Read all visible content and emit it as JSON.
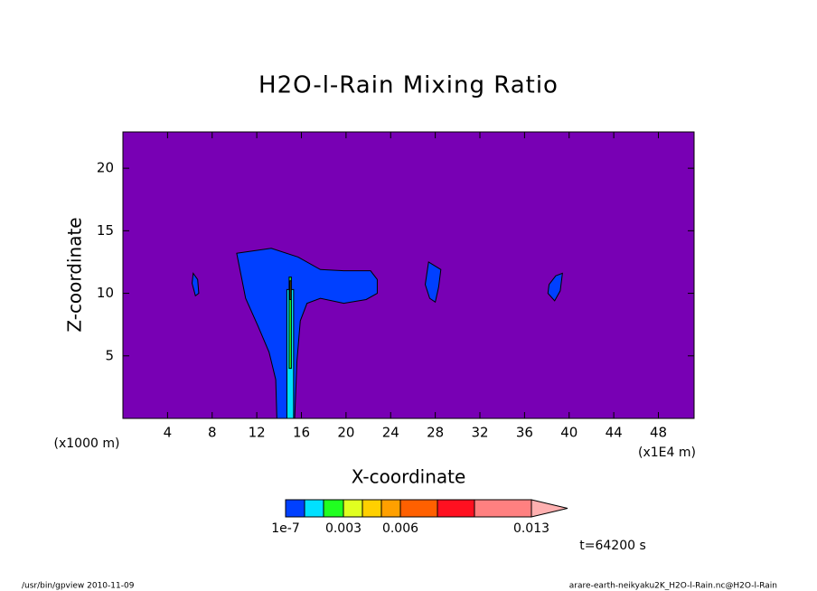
{
  "chart_data": {
    "type": "contour",
    "title": "H2O-l-Rain Mixing Ratio",
    "x_label": "X-coordinate",
    "y_label": "Z-coordinate",
    "x_unit_label": "(x1E4 m)",
    "y_unit_label": "(x1000 m)",
    "xlim": [
      0,
      51.2
    ],
    "ylim": [
      0,
      22.9
    ],
    "xticks": [
      4,
      8,
      12,
      16,
      20,
      24,
      28,
      32,
      36,
      40,
      44,
      48
    ],
    "yticks": [
      5,
      10,
      15,
      20
    ],
    "background_color": "#7800b4",
    "regions": [
      {
        "color": "#0040ff",
        "x": [
          10.2,
          13.3,
          15.7,
          17.7,
          19.8,
          22.2,
          22.8,
          22.8,
          21.8,
          19.8,
          17.7,
          16.5,
          15.9,
          15.6,
          15.4,
          13.8,
          13.7,
          13.1,
          12.1,
          11.0
        ],
        "y": [
          13.2,
          13.6,
          12.9,
          11.9,
          11.8,
          11.8,
          11.1,
          10.0,
          9.5,
          9.2,
          9.6,
          9.2,
          7.8,
          4.6,
          0,
          0,
          3.1,
          5.3,
          7.4,
          9.6
        ]
      },
      {
        "color": "#0040ff",
        "x": [
          6.3,
          6.7,
          6.8,
          6.5,
          6.2
        ],
        "y": [
          11.6,
          11.1,
          10.0,
          9.8,
          10.8
        ]
      },
      {
        "color": "#0040ff",
        "x": [
          27.4,
          28.5,
          28.3,
          28.0,
          27.5,
          27.1
        ],
        "y": [
          12.5,
          11.9,
          10.5,
          9.3,
          9.6,
          10.7
        ]
      },
      {
        "color": "#0040ff",
        "x": [
          38.8,
          39.4,
          39.2,
          38.7,
          38.1,
          38.2
        ],
        "y": [
          11.4,
          11.6,
          10.2,
          9.4,
          10.0,
          10.7
        ]
      },
      {
        "color": "#00e0ff",
        "x": [
          14.7,
          15.3,
          15.3,
          14.7
        ],
        "y": [
          10.3,
          10.3,
          0,
          0
        ]
      },
      {
        "color": "#20ff20",
        "x": [
          14.9,
          15.1,
          15.1,
          14.9
        ],
        "y": [
          11.3,
          11.3,
          4.0,
          4.0
        ]
      },
      {
        "color": "#ffd000",
        "x": [
          14.95,
          15.05,
          15.05,
          14.95
        ],
        "y": [
          11.0,
          11.0,
          9.5,
          9.5
        ]
      }
    ],
    "colorbar": {
      "colors": [
        "#0040ff",
        "#00e0ff",
        "#20ff20",
        "#e0ff20",
        "#ffd000",
        "#ffa000",
        "#ff6000",
        "#ff1020",
        "#ff8080",
        "#ffb0b0"
      ],
      "labels": [
        "1e-7",
        null,
        null,
        "0.003",
        null,
        null,
        "0.006",
        null,
        null,
        "0.013"
      ]
    },
    "time_label": "t=64200 s"
  },
  "footer": {
    "left": "/usr/bin/gpview  2010-11-09",
    "right": "arare-earth-neikyaku2K_H2O-l-Rain.nc@H2O-l-Rain"
  }
}
